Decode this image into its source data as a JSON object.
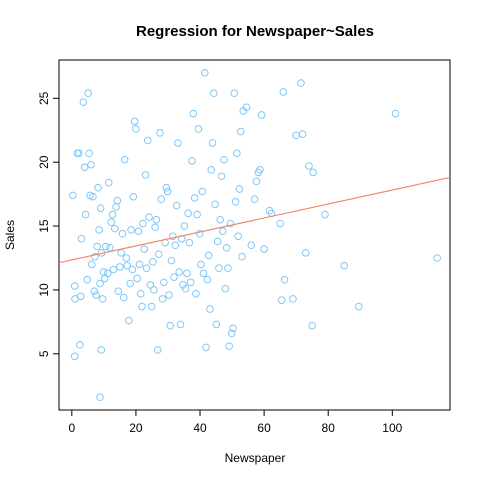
{
  "chart_data": {
    "type": "scatter",
    "title": "Regression for Newspaper~Sales",
    "xlabel": "Newspaper",
    "ylabel": "Sales",
    "xlim": [
      -4,
      118
    ],
    "ylim": [
      0.6,
      28
    ],
    "x_ticks": [
      0,
      20,
      40,
      60,
      80,
      100
    ],
    "y_ticks": [
      5,
      10,
      15,
      20,
      25
    ],
    "grid": false,
    "point_color": "#7ec8f8",
    "line_color": "#f4866c",
    "regression": {
      "intercept": 12.35,
      "slope": 0.0547
    },
    "points": [
      [
        0.3,
        17.4
      ],
      [
        0.9,
        10.3
      ],
      [
        1.0,
        9.3
      ],
      [
        1.7,
        20.7
      ],
      [
        2.2,
        20.7
      ],
      [
        2.5,
        5.7
      ],
      [
        2.8,
        9.5
      ],
      [
        0.9,
        4.8
      ],
      [
        3.0,
        14.0
      ],
      [
        3.6,
        24.7
      ],
      [
        4.0,
        19.6
      ],
      [
        4.3,
        15.9
      ],
      [
        4.8,
        10.8
      ],
      [
        5.1,
        25.4
      ],
      [
        5.4,
        20.7
      ],
      [
        5.7,
        17.4
      ],
      [
        6.0,
        19.8
      ],
      [
        6.2,
        12.0
      ],
      [
        6.6,
        17.3
      ],
      [
        7.0,
        9.9
      ],
      [
        7.2,
        12.6
      ],
      [
        7.6,
        9.6
      ],
      [
        7.9,
        13.4
      ],
      [
        8.2,
        18.0
      ],
      [
        8.5,
        14.7
      ],
      [
        8.8,
        10.5
      ],
      [
        9.0,
        16.4
      ],
      [
        9.3,
        12.9
      ],
      [
        9.6,
        9.3
      ],
      [
        9.9,
        11.4
      ],
      [
        10.3,
        10.9
      ],
      [
        10.6,
        13.4
      ],
      [
        8.8,
        1.6
      ],
      [
        9.2,
        5.3
      ],
      [
        11.2,
        11.3
      ],
      [
        11.5,
        18.4
      ],
      [
        11.9,
        13.3
      ],
      [
        12.3,
        15.3
      ],
      [
        12.7,
        15.9
      ],
      [
        13.0,
        11.6
      ],
      [
        13.4,
        14.8
      ],
      [
        13.8,
        16.5
      ],
      [
        14.2,
        17.0
      ],
      [
        14.5,
        9.9
      ],
      [
        15.0,
        11.8
      ],
      [
        15.4,
        12.9
      ],
      [
        15.8,
        14.4
      ],
      [
        16.2,
        9.4
      ],
      [
        16.5,
        20.2
      ],
      [
        17.0,
        12.5
      ],
      [
        17.3,
        11.9
      ],
      [
        17.8,
        7.6
      ],
      [
        18.2,
        10.5
      ],
      [
        18.5,
        14.7
      ],
      [
        18.9,
        11.6
      ],
      [
        19.2,
        17.3
      ],
      [
        19.6,
        23.2
      ],
      [
        20.0,
        22.6
      ],
      [
        20.4,
        10.9
      ],
      [
        20.8,
        14.6
      ],
      [
        21.1,
        12.0
      ],
      [
        21.5,
        9.7
      ],
      [
        21.9,
        8.7
      ],
      [
        22.2,
        15.2
      ],
      [
        22.6,
        13.2
      ],
      [
        23.0,
        19.0
      ],
      [
        23.3,
        11.7
      ],
      [
        23.7,
        21.7
      ],
      [
        24.1,
        15.7
      ],
      [
        24.5,
        10.4
      ],
      [
        24.9,
        8.7
      ],
      [
        25.3,
        12.2
      ],
      [
        25.6,
        10.0
      ],
      [
        26.0,
        14.9
      ],
      [
        26.4,
        15.5
      ],
      [
        26.8,
        5.3
      ],
      [
        27.1,
        12.8
      ],
      [
        27.5,
        22.3
      ],
      [
        27.9,
        17.1
      ],
      [
        28.3,
        9.3
      ],
      [
        28.7,
        10.6
      ],
      [
        29.1,
        13.7
      ],
      [
        29.5,
        18.0
      ],
      [
        29.9,
        17.7
      ],
      [
        30.3,
        9.6
      ],
      [
        30.7,
        7.2
      ],
      [
        31.1,
        12.3
      ],
      [
        31.5,
        14.2
      ],
      [
        31.9,
        11.0
      ],
      [
        32.3,
        13.5
      ],
      [
        32.7,
        16.6
      ],
      [
        33.1,
        21.5
      ],
      [
        33.5,
        11.4
      ],
      [
        33.9,
        7.3
      ],
      [
        34.3,
        14.0
      ],
      [
        34.7,
        10.4
      ],
      [
        35.1,
        15.0
      ],
      [
        35.5,
        10.1
      ],
      [
        35.9,
        11.3
      ],
      [
        36.3,
        16.0
      ],
      [
        36.7,
        13.7
      ],
      [
        37.1,
        10.6
      ],
      [
        37.5,
        20.1
      ],
      [
        37.9,
        23.8
      ],
      [
        38.3,
        17.2
      ],
      [
        38.7,
        9.7
      ],
      [
        39.1,
        15.9
      ],
      [
        39.5,
        22.6
      ],
      [
        39.9,
        14.4
      ],
      [
        40.3,
        12.0
      ],
      [
        40.7,
        17.7
      ],
      [
        41.1,
        11.3
      ],
      [
        41.5,
        27.0
      ],
      [
        41.9,
        5.5
      ],
      [
        42.3,
        10.8
      ],
      [
        42.7,
        12.7
      ],
      [
        43.1,
        8.5
      ],
      [
        43.5,
        19.4
      ],
      [
        43.9,
        21.5
      ],
      [
        44.3,
        25.4
      ],
      [
        44.7,
        16.7
      ],
      [
        45.1,
        7.3
      ],
      [
        45.5,
        13.8
      ],
      [
        45.9,
        11.7
      ],
      [
        46.3,
        15.5
      ],
      [
        46.7,
        18.9
      ],
      [
        47.1,
        14.6
      ],
      [
        47.5,
        20.2
      ],
      [
        47.9,
        10.1
      ],
      [
        48.3,
        13.3
      ],
      [
        48.7,
        11.7
      ],
      [
        49.1,
        5.6
      ],
      [
        49.5,
        15.2
      ],
      [
        49.9,
        6.6
      ],
      [
        50.3,
        7.0
      ],
      [
        50.7,
        25.4
      ],
      [
        51.1,
        16.9
      ],
      [
        51.5,
        20.7
      ],
      [
        51.9,
        14.2
      ],
      [
        52.3,
        17.9
      ],
      [
        52.7,
        22.4
      ],
      [
        53.1,
        12.6
      ],
      [
        53.5,
        24.0
      ],
      [
        54.5,
        24.3
      ],
      [
        56.0,
        13.5
      ],
      [
        57.0,
        17.1
      ],
      [
        57.6,
        18.5
      ],
      [
        58.2,
        19.2
      ],
      [
        58.7,
        19.4
      ],
      [
        59.2,
        23.7
      ],
      [
        60.0,
        13.2
      ],
      [
        61.7,
        16.2
      ],
      [
        62.3,
        16.0
      ],
      [
        65.0,
        15.2
      ],
      [
        65.5,
        9.2
      ],
      [
        66.0,
        25.5
      ],
      [
        66.4,
        10.8
      ],
      [
        69.0,
        9.3
      ],
      [
        70.0,
        22.1
      ],
      [
        71.5,
        26.2
      ],
      [
        72.0,
        22.2
      ],
      [
        73.0,
        12.9
      ],
      [
        74.0,
        19.7
      ],
      [
        75.0,
        7.2
      ],
      [
        75.3,
        19.2
      ],
      [
        79.0,
        15.9
      ],
      [
        85.0,
        11.9
      ],
      [
        89.5,
        8.7
      ],
      [
        101.0,
        23.8
      ],
      [
        114.0,
        12.5
      ]
    ]
  }
}
